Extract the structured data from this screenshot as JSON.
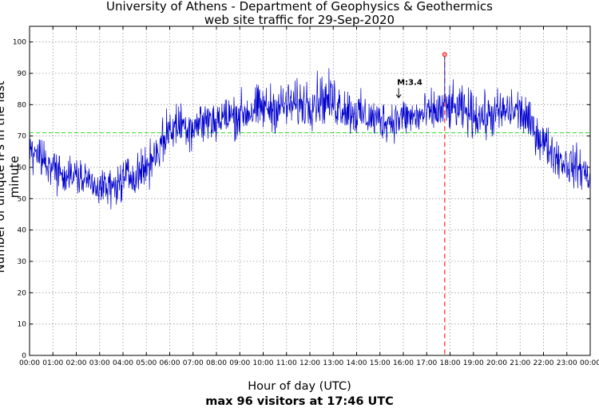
{
  "chart_data": {
    "type": "line",
    "title": "University of Athens - Department of Geophysics & Geothermics",
    "subtitle": "web site traffic for 29-Sep-2020",
    "xlabel": "Hour of day (UTC)",
    "ylabel": "Number of unique IPs in the last minute",
    "footer": "max 96 visitors at 17:46 UTC",
    "xlim": [
      0,
      24
    ],
    "ylim": [
      0,
      105
    ],
    "x_tick_labels": [
      "00:00",
      "01:00",
      "02:00",
      "03:00",
      "04:00",
      "05:00",
      "06:00",
      "07:00",
      "08:00",
      "09:00",
      "10:00",
      "11:00",
      "12:00",
      "13:00",
      "14:00",
      "15:00",
      "16:00",
      "17:00",
      "18:00",
      "19:00",
      "20:00",
      "21:00",
      "22:00",
      "23:00",
      "00:00"
    ],
    "y_tick_labels": [
      "0",
      "10",
      "20",
      "30",
      "40",
      "50",
      "60",
      "70",
      "80",
      "90",
      "100"
    ],
    "grid": true,
    "mean_line": 71,
    "max_point": {
      "hour": 17.77,
      "value": 96,
      "label": "17:46"
    },
    "annotation": {
      "label": "M:3.4",
      "hour": 15.8,
      "value": 83
    },
    "series": [
      {
        "name": "unique IPs per minute",
        "hours": [
          0,
          0.5,
          1,
          1.5,
          2,
          2.5,
          3,
          3.5,
          4,
          4.5,
          5,
          5.5,
          6,
          6.5,
          7,
          7.5,
          8,
          8.5,
          9,
          9.5,
          10,
          10.5,
          11,
          11.5,
          12,
          12.5,
          13,
          13.5,
          14,
          14.5,
          15,
          15.5,
          16,
          16.5,
          17,
          17.5,
          18,
          18.5,
          19,
          19.5,
          20,
          20.5,
          21,
          21.5,
          22,
          22.5,
          23,
          23.5,
          24
        ],
        "values": [
          66,
          63,
          60,
          58,
          57,
          56,
          54,
          53,
          56,
          58,
          60,
          66,
          72,
          74,
          73,
          75,
          75,
          76,
          77,
          78,
          79,
          79,
          80,
          80,
          81,
          82,
          81,
          79,
          77,
          76,
          75,
          75,
          76,
          76,
          77,
          78,
          79,
          78,
          77,
          76,
          77,
          78,
          78,
          73,
          68,
          64,
          61,
          60,
          57
        ],
        "amplitude": [
          7,
          7,
          7,
          7,
          7,
          6,
          6,
          7,
          7,
          7,
          7,
          8,
          8,
          8,
          8,
          8,
          8,
          8,
          8,
          8,
          8,
          8,
          8,
          8,
          9,
          9,
          9,
          8,
          8,
          7,
          7,
          7,
          7,
          7,
          7,
          8,
          8,
          8,
          8,
          8,
          8,
          8,
          8,
          7,
          7,
          7,
          7,
          7,
          7
        ]
      }
    ]
  }
}
